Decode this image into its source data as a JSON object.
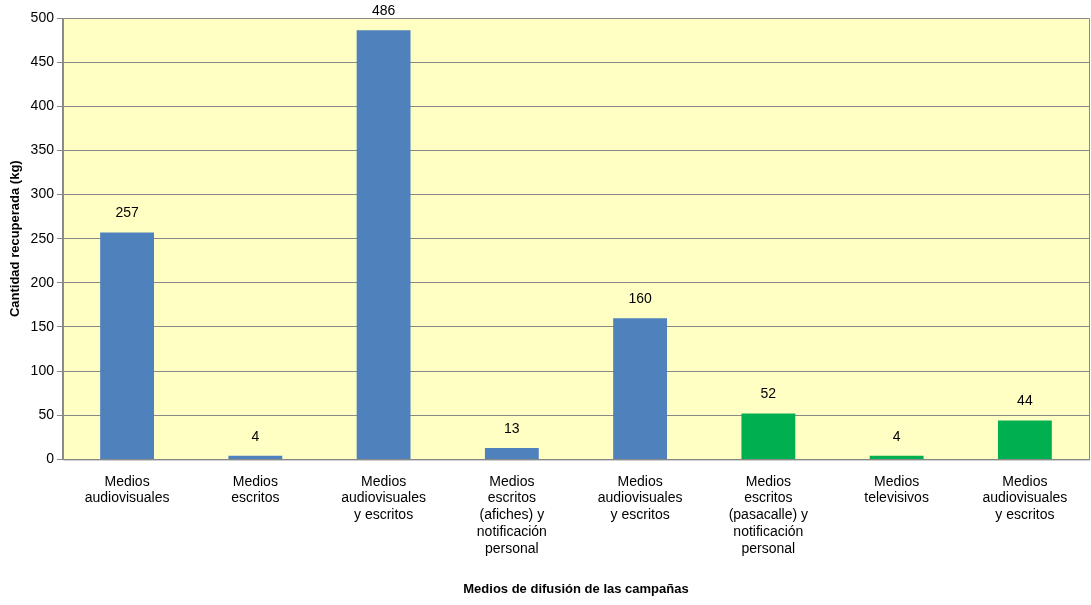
{
  "chart_data": {
    "type": "bar",
    "xlabel": "Medios de difusión de las campañas",
    "ylabel": "Cantidad recuperada (kg)",
    "categories": [
      "Medios audiovisuales",
      "Medios escritos",
      "Medios audiovisuales y escritos",
      "Medios escritos (afiches) y notificación personal",
      "Medios audiovisuales y escritos",
      "Medios escritos (pasacalle) y notificación personal",
      "Medios televisivos",
      "Medios audiovisuales y escritos"
    ],
    "values": [
      257,
      4,
      486,
      13,
      160,
      52,
      4,
      44
    ],
    "colors": [
      "#4f81bd",
      "#4f81bd",
      "#4f81bd",
      "#4f81bd",
      "#4f81bd",
      "#00b050",
      "#00b050",
      "#00b050"
    ],
    "ylim": [
      0,
      500
    ],
    "yticks": [
      0,
      50,
      100,
      150,
      200,
      250,
      300,
      350,
      400,
      450,
      500
    ],
    "grid": "y",
    "data_labels": true,
    "legend": false
  }
}
